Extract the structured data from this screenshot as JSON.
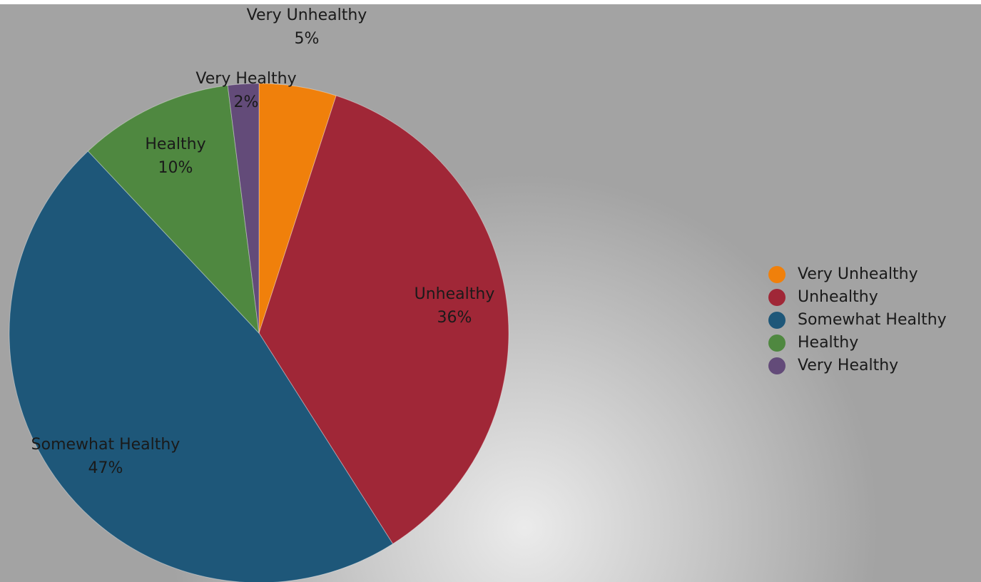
{
  "chart_data": {
    "type": "pie",
    "categories": [
      "Very Unhealthy",
      "Unhealthy",
      "Somewhat Healthy",
      "Healthy",
      "Very Healthy"
    ],
    "values": [
      5,
      36,
      47,
      10,
      2
    ],
    "value_labels": [
      "5%",
      "36%",
      "47%",
      "10%",
      "2%"
    ],
    "colors": [
      "#f0800b",
      "#a02737",
      "#1e5779",
      "#4f8840",
      "#634b79"
    ],
    "title": "",
    "legend": {
      "position": "right",
      "entries": [
        "Very Unhealthy",
        "Unhealthy",
        "Somewhat Healthy",
        "Healthy",
        "Very Healthy"
      ]
    },
    "start_angle": "12 o'clock",
    "direction": "clockwise"
  }
}
